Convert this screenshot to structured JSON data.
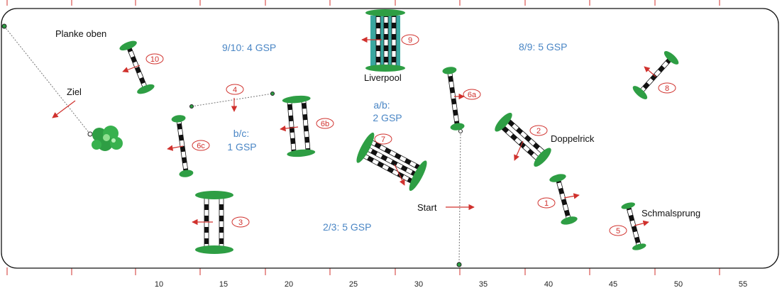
{
  "colors": {
    "arena_border": "#111111",
    "tick": "#d0312d",
    "jump_number": "#d0312d",
    "direction_arrow": "#d0312d",
    "distance_text": "#4a86c5",
    "hedge": "#2e9e44",
    "water": "#3aa7a0"
  },
  "scale_labels": [
    "10",
    "15",
    "20",
    "25",
    "30",
    "35",
    "40",
    "45",
    "50",
    "55"
  ],
  "labels": {
    "finish_marker": "Planke oben",
    "finish": "Ziel",
    "start": "Start",
    "liverpool": "Liverpool",
    "double_oxer": "Doppelrick",
    "narrow_jump": "Schmalsprung"
  },
  "distances": {
    "d_9_10": "9/10: 4 GSP",
    "d_8_9": "8/9: 5 GSP",
    "d_a_b_line1": "a/b:",
    "d_a_b_line2": "2 GSP",
    "d_b_c_line1": "b/c:",
    "d_b_c_line2": "1 GSP",
    "d_2_3": "2/3: 5 GSP"
  },
  "jumps": [
    "1",
    "2",
    "3",
    "4",
    "5",
    "6a",
    "6b",
    "6c",
    "7",
    "8",
    "9",
    "10"
  ],
  "icons": [
    "hedge-icon",
    "bush-icon",
    "direction-arrow-icon",
    "flag-icon"
  ]
}
